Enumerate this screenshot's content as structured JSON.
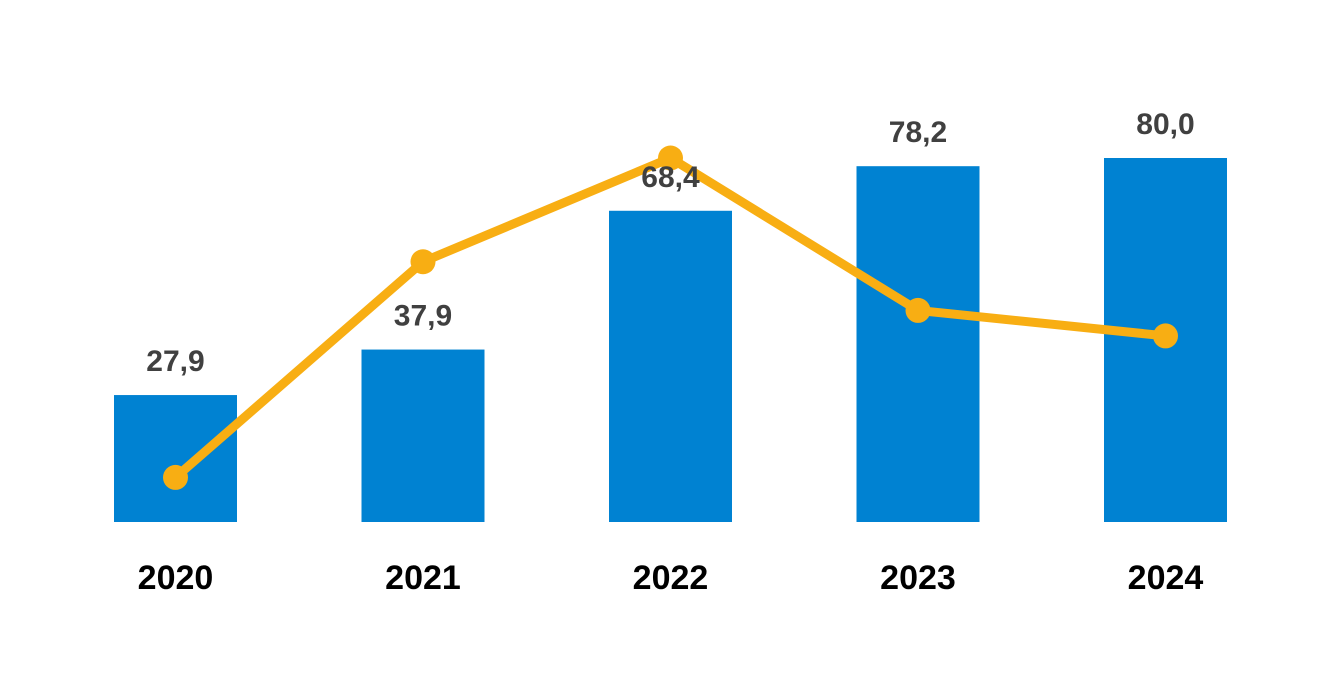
{
  "chart_data": {
    "type": "bar",
    "categories": [
      "2020",
      "2021",
      "2022",
      "2023",
      "2024"
    ],
    "series": [
      {
        "type": "bar",
        "values": [
          27.9,
          37.9,
          68.4,
          78.2,
          80.0
        ],
        "labels": [
          "27,9",
          "37,9",
          "68,4",
          "78,2",
          "80,0"
        ],
        "color": "#0082D2"
      },
      {
        "type": "line",
        "values": [
          9.8,
          57.2,
          80.0,
          46.5,
          40.9
        ],
        "color": "#F8AE13",
        "markers": true
      }
    ],
    "title": "",
    "xlabel": "",
    "ylabel": "",
    "ylim": [
      0,
      100
    ],
    "grid": false,
    "legend": "none"
  }
}
